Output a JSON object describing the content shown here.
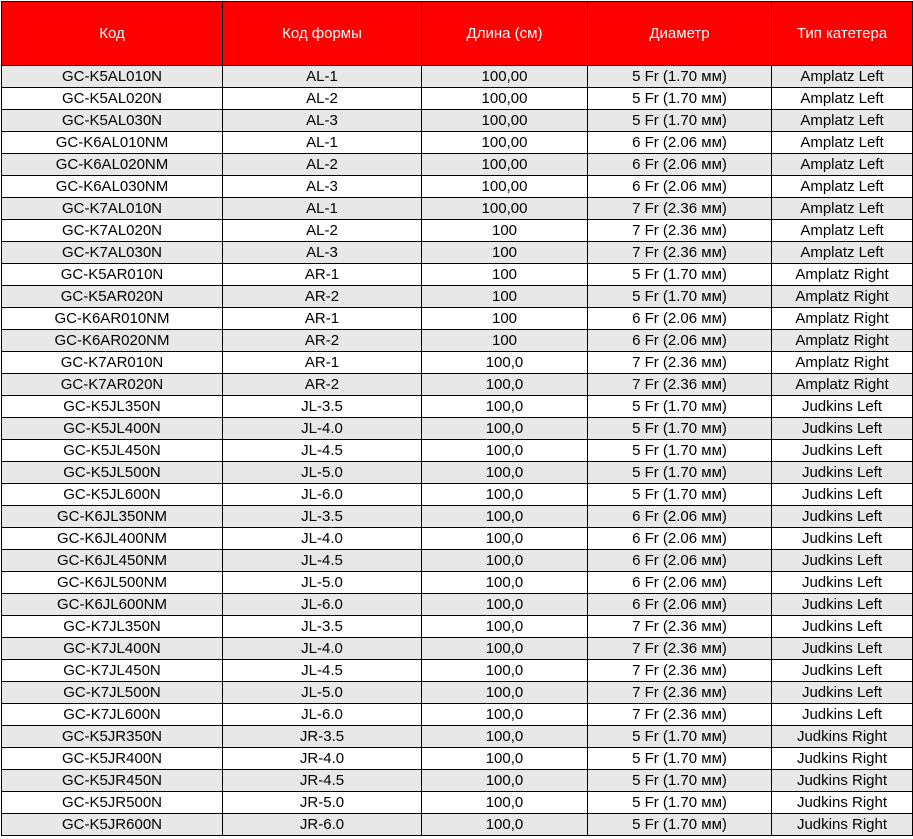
{
  "colors": {
    "header_bg": "#ff0000",
    "header_text": "#ffffff",
    "stripe": "#e8e8e8"
  },
  "table": {
    "headers": [
      "Код",
      "Код формы",
      "Длина (см)",
      "Диаметр",
      "Тип катетера"
    ],
    "rows": [
      [
        "GC-K5AL010N",
        "AL-1",
        "100,00",
        "5 Fr (1.70 мм)",
        "Amplatz Left"
      ],
      [
        "GC-K5AL020N",
        "AL-2",
        "100,00",
        "5 Fr (1.70 мм)",
        "Amplatz Left"
      ],
      [
        "GC-K5AL030N",
        "AL-3",
        "100,00",
        "5 Fr (1.70 мм)",
        "Amplatz Left"
      ],
      [
        "GC-K6AL010NM",
        "AL-1",
        "100,00",
        "6 Fr (2.06 мм)",
        "Amplatz Left"
      ],
      [
        "GC-K6AL020NM",
        "AL-2",
        "100,00",
        "6 Fr (2.06 мм)",
        "Amplatz Left"
      ],
      [
        "GC-K6AL030NM",
        "AL-3",
        "100,00",
        "6 Fr (2.06 мм)",
        "Amplatz Left"
      ],
      [
        "GC-K7AL010N",
        "AL-1",
        "100,00",
        "7 Fr (2.36 мм)",
        "Amplatz Left"
      ],
      [
        "GC-K7AL020N",
        "AL-2",
        "100",
        "7 Fr (2.36 мм)",
        "Amplatz Left"
      ],
      [
        "GC-K7AL030N",
        "AL-3",
        "100",
        "7 Fr (2.36 мм)",
        "Amplatz Left"
      ],
      [
        "GC-K5AR010N",
        "AR-1",
        "100",
        "5 Fr (1.70 мм)",
        "Amplatz Right"
      ],
      [
        "GC-K5AR020N",
        "AR-2",
        "100",
        "5 Fr (1.70 мм)",
        "Amplatz Right"
      ],
      [
        "GC-K6AR010NM",
        "AR-1",
        "100",
        "6 Fr (2.06 мм)",
        "Amplatz Right"
      ],
      [
        "GC-K6AR020NM",
        "AR-2",
        "100",
        "6 Fr (2.06 мм)",
        "Amplatz Right"
      ],
      [
        "GC-K7AR010N",
        "AR-1",
        "100,0",
        "7 Fr (2.36 мм)",
        "Amplatz Right"
      ],
      [
        "GC-K7AR020N",
        "AR-2",
        "100,0",
        "7 Fr (2.36 мм)",
        "Amplatz Right"
      ],
      [
        "GC-K5JL350N",
        "JL-3.5",
        "100,0",
        "5 Fr (1.70 мм)",
        "Judkins Left"
      ],
      [
        "GC-K5JL400N",
        "JL-4.0",
        "100,0",
        "5 Fr (1.70 мм)",
        "Judkins Left"
      ],
      [
        "GC-K5JL450N",
        "JL-4.5",
        "100,0",
        "5 Fr (1.70 мм)",
        "Judkins Left"
      ],
      [
        "GC-K5JL500N",
        "JL-5.0",
        "100,0",
        "5 Fr (1.70 мм)",
        "Judkins Left"
      ],
      [
        "GC-K5JL600N",
        "JL-6.0",
        "100,0",
        "5 Fr (1.70 мм)",
        "Judkins Left"
      ],
      [
        "GC-K6JL350NM",
        "JL-3.5",
        "100,0",
        "6 Fr (2.06 мм)",
        "Judkins Left"
      ],
      [
        "GC-K6JL400NM",
        "JL-4.0",
        "100,0",
        "6 Fr (2.06 мм)",
        "Judkins Left"
      ],
      [
        "GC-K6JL450NM",
        "JL-4.5",
        "100,0",
        "6 Fr (2.06 мм)",
        "Judkins Left"
      ],
      [
        "GC-K6JL500NM",
        "JL-5.0",
        "100,0",
        "6 Fr (2.06 мм)",
        "Judkins Left"
      ],
      [
        "GC-K6JL600NM",
        "JL-6.0",
        "100,0",
        "6 Fr (2.06 мм)",
        "Judkins Left"
      ],
      [
        "GC-K7JL350N",
        "JL-3.5",
        "100,0",
        "7 Fr (2.36 мм)",
        "Judkins Left"
      ],
      [
        "GC-K7JL400N",
        "JL-4.0",
        "100,0",
        "7 Fr (2.36 мм)",
        "Judkins Left"
      ],
      [
        "GC-K7JL450N",
        "JL-4.5",
        "100,0",
        "7 Fr (2.36 мм)",
        "Judkins Left"
      ],
      [
        "GC-K7JL500N",
        "JL-5.0",
        "100,0",
        "7 Fr (2.36 мм)",
        "Judkins Left"
      ],
      [
        "GC-K7JL600N",
        "JL-6.0",
        "100,0",
        "7 Fr (2.36 мм)",
        "Judkins Left"
      ],
      [
        "GC-K5JR350N",
        "JR-3.5",
        "100,0",
        "5 Fr (1.70 мм)",
        "Judkins Right"
      ],
      [
        "GC-K5JR400N",
        "JR-4.0",
        "100,0",
        "5 Fr (1.70 мм)",
        "Judkins Right"
      ],
      [
        "GC-K5JR450N",
        "JR-4.5",
        "100,0",
        "5 Fr (1.70 мм)",
        "Judkins Right"
      ],
      [
        "GC-K5JR500N",
        "JR-5.0",
        "100,0",
        "5 Fr (1.70 мм)",
        "Judkins Right"
      ],
      [
        "GC-K5JR600N",
        "JR-6.0",
        "100,0",
        "5 Fr (1.70 мм)",
        "Judkins Right"
      ]
    ]
  }
}
